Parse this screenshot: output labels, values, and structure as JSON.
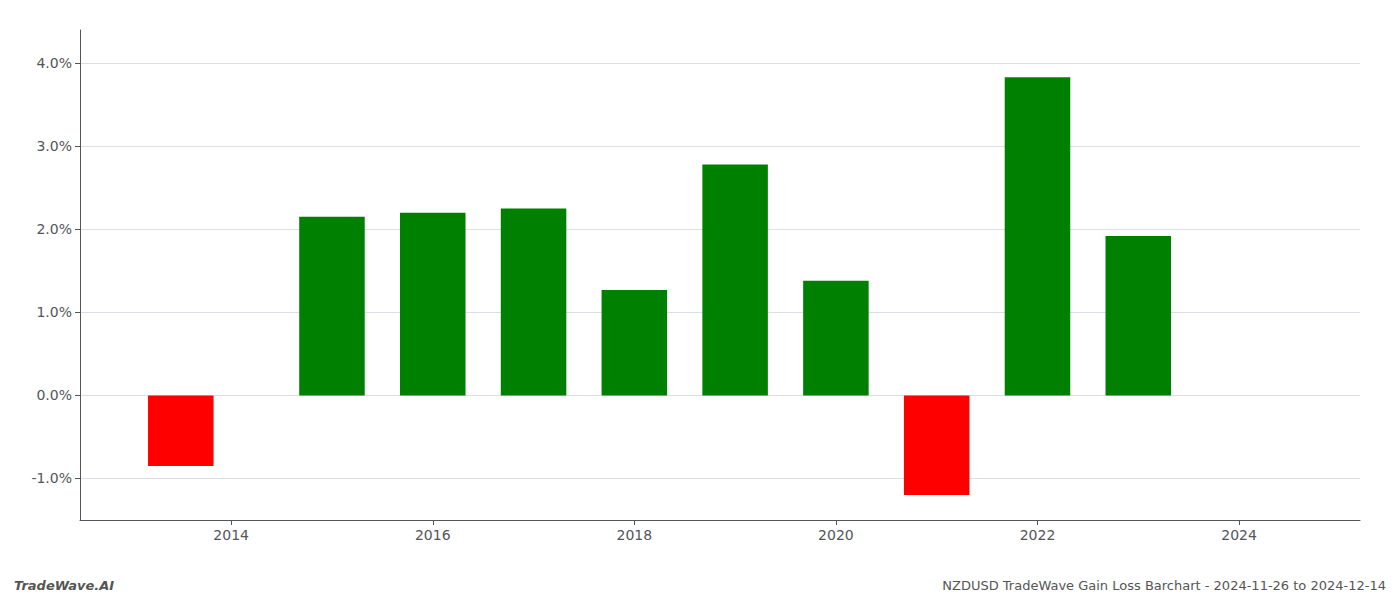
{
  "chart_data": {
    "type": "bar",
    "x": [
      2013.5,
      2015.0,
      2016.0,
      2017.0,
      2018.0,
      2019.0,
      2020.0,
      2021.0,
      2022.0,
      2023.0
    ],
    "values": [
      -0.0085,
      0.0215,
      0.022,
      0.0225,
      0.0127,
      0.0278,
      0.0138,
      -0.012,
      0.0383,
      0.0192
    ],
    "colors": [
      "#ff0000",
      "#008000",
      "#008000",
      "#008000",
      "#008000",
      "#008000",
      "#008000",
      "#ff0000",
      "#008000",
      "#008000"
    ],
    "xlim": [
      2012.5,
      2025.2
    ],
    "xticks": [
      2014,
      2016,
      2018,
      2020,
      2022,
      2024
    ],
    "ylim": [
      -0.015,
      0.044
    ],
    "yticks": [
      {
        "value": -0.01,
        "label": "-1.0%"
      },
      {
        "value": 0.0,
        "label": "0.0%"
      },
      {
        "value": 0.01,
        "label": "1.0%"
      },
      {
        "value": 0.02,
        "label": "2.0%"
      },
      {
        "value": 0.03,
        "label": "3.0%"
      },
      {
        "value": 0.04,
        "label": "4.0%"
      }
    ],
    "grid": true,
    "annotations": [
      "TradeWave.AI",
      "NZDUSD TradeWave Gain Loss Barchart - 2024-11-26 to 2024-12-14"
    ]
  }
}
